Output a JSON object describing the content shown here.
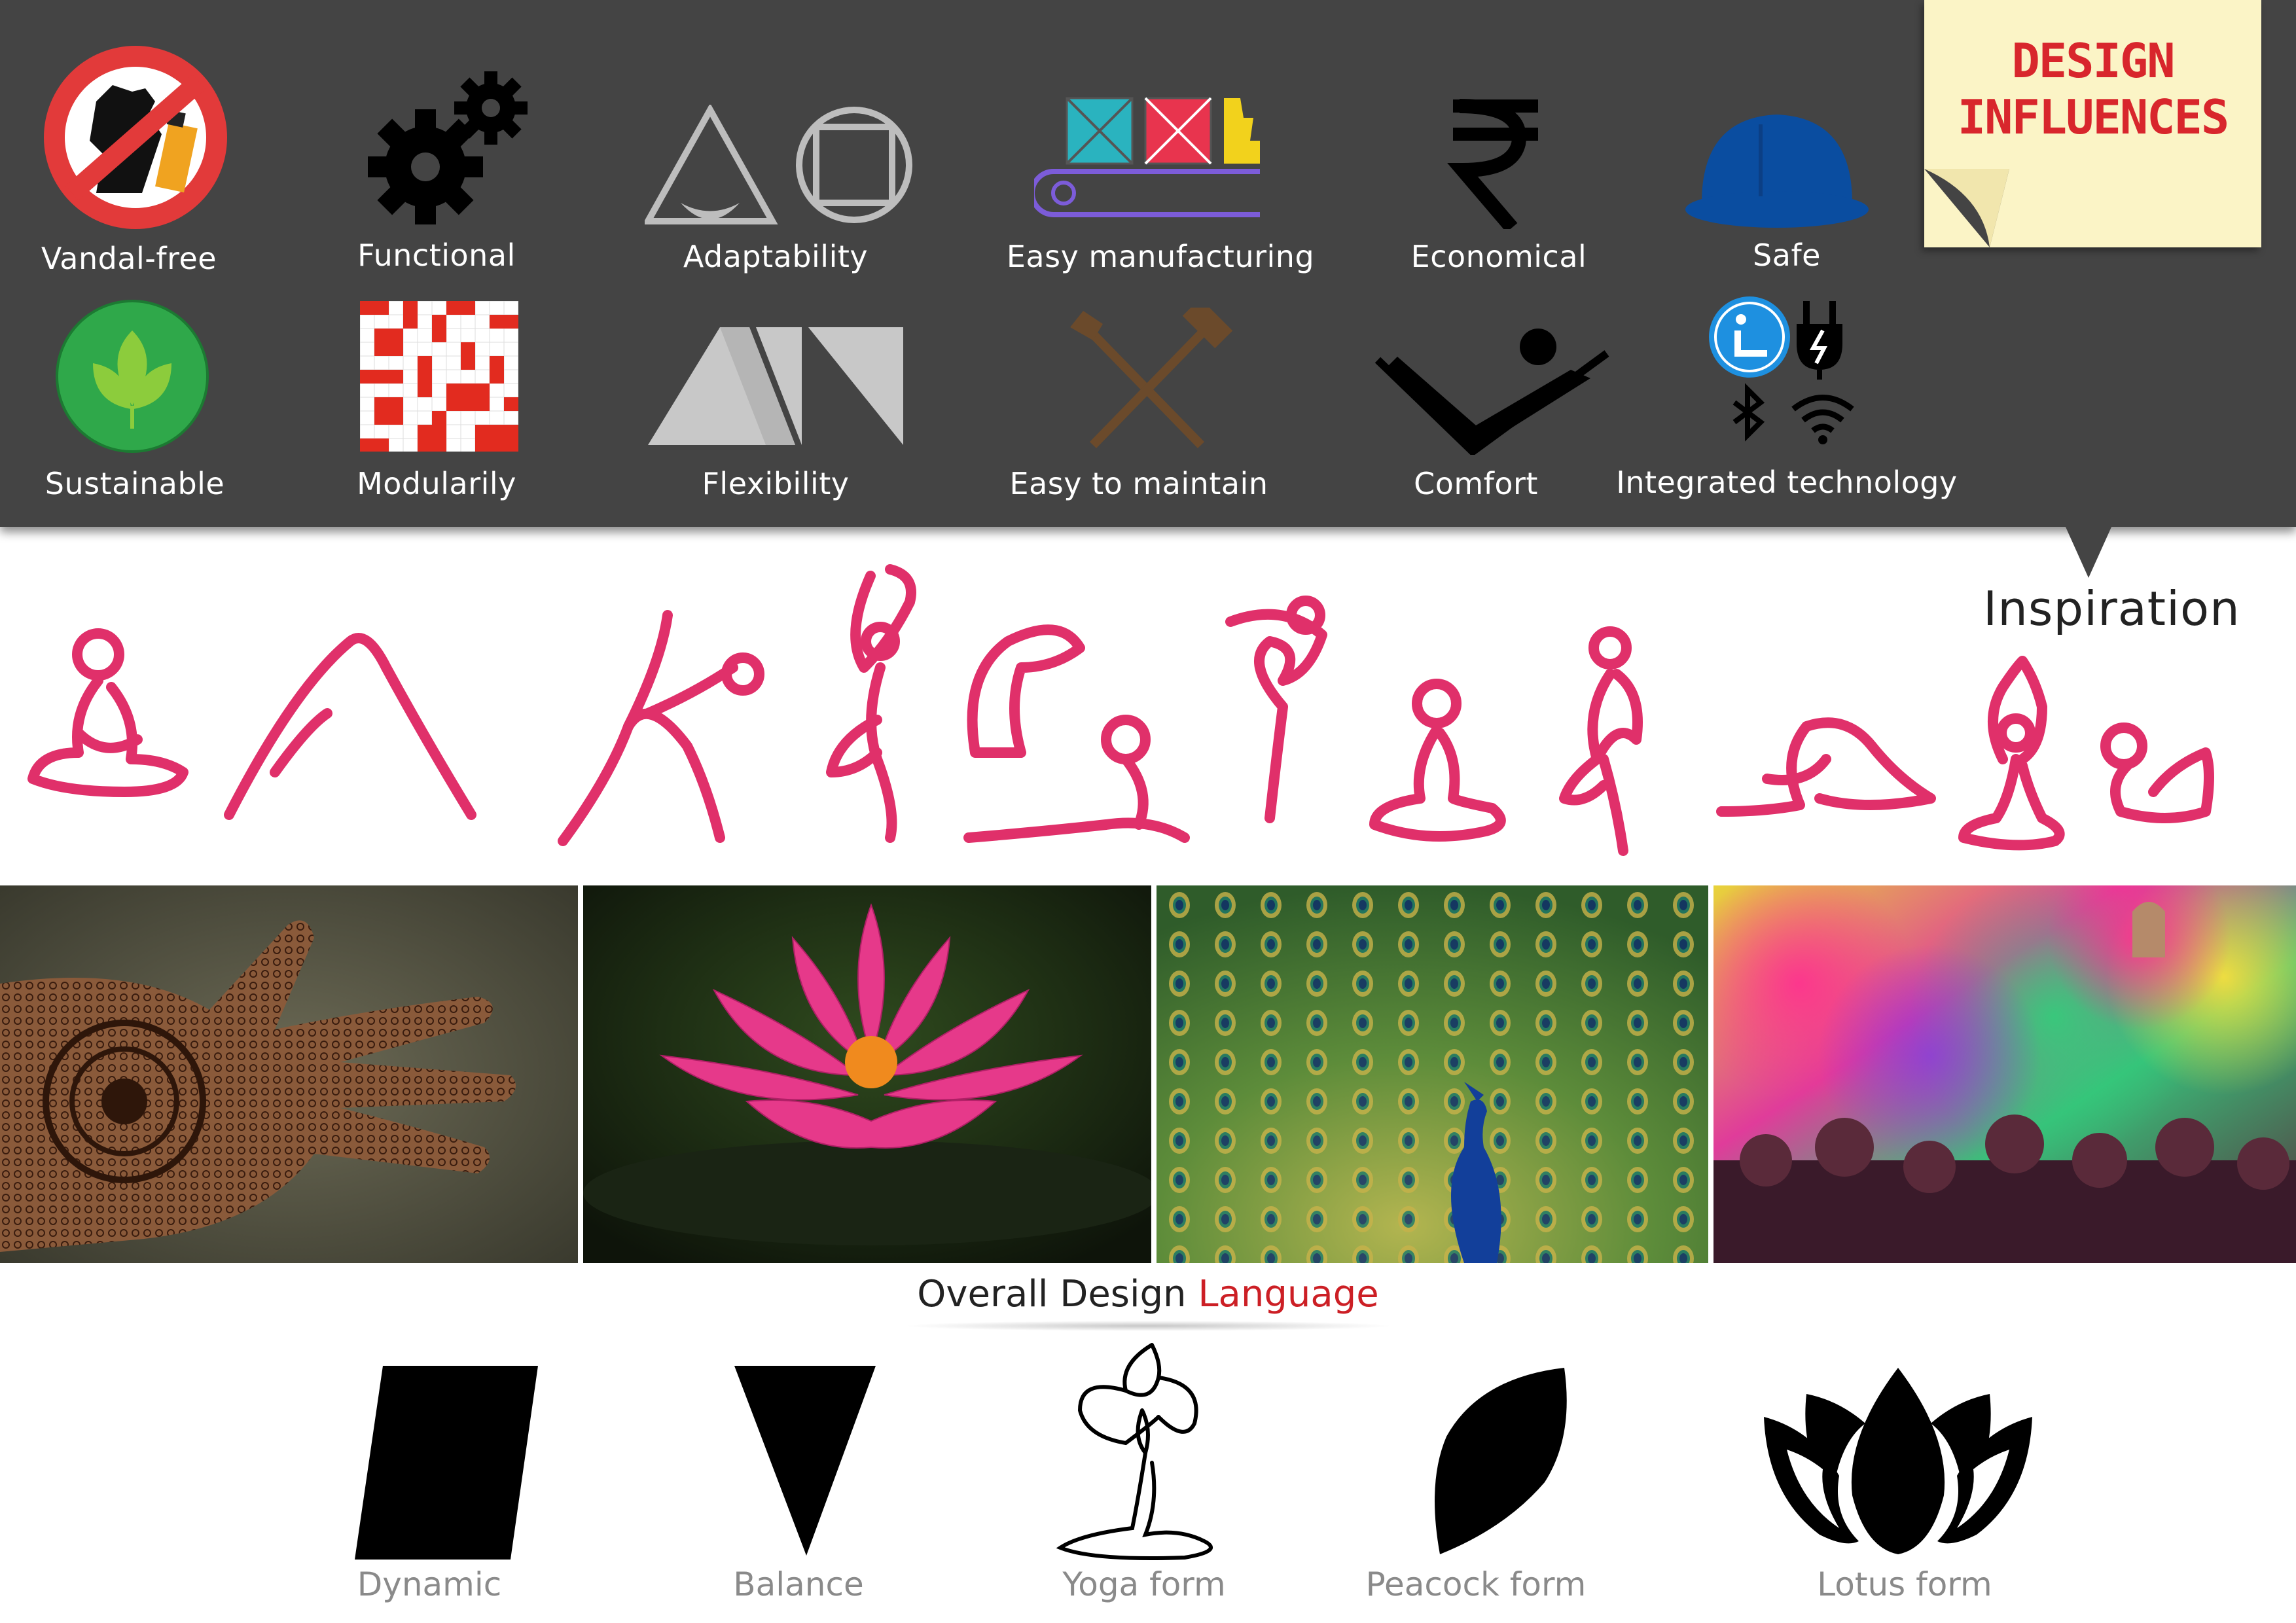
{
  "note": {
    "line1": "DESIGN",
    "line2": "INFLUENCES"
  },
  "influences": [
    {
      "label": "Vandal-free",
      "icon": "no-vandal-icon"
    },
    {
      "label": "Functional",
      "icon": "gears-icon"
    },
    {
      "label": "Adaptability",
      "icon": "adaptability-icon"
    },
    {
      "label": "Easy manufacturing",
      "icon": "conveyor-icon"
    },
    {
      "label": "Economical",
      "icon": "rupee-icon"
    },
    {
      "label": "Safe",
      "icon": "hard-hat-icon"
    },
    {
      "label": "Sustainable",
      "icon": "leaf-icon"
    },
    {
      "label": "Modularily",
      "icon": "grid-icon"
    },
    {
      "label": "Flexibility",
      "icon": "flexibility-icon"
    },
    {
      "label": "Easy to maintain",
      "icon": "shovel-hammer-icon"
    },
    {
      "label": "Comfort",
      "icon": "reclining-person-icon"
    },
    {
      "label": "Integrated technology",
      "icon": "tech-icons"
    }
  ],
  "inspiration": {
    "title": "Inspiration"
  },
  "photos": [
    "henna-hand-photo",
    "lotus-photo",
    "peacock-photo",
    "holi-photo"
  ],
  "language": {
    "title_part1": "Overall Design ",
    "title_part2": "Language",
    "forms": [
      {
        "label": "Dynamic",
        "icon": "parallelogram-icon"
      },
      {
        "label": "Balance",
        "icon": "inverted-triangle-icon"
      },
      {
        "label": "Yoga form",
        "icon": "yoga-line-icon"
      },
      {
        "label": "Peacock form",
        "icon": "peacock-leaf-icon"
      },
      {
        "label": "Lotus form",
        "icon": "lotus-icon"
      }
    ]
  },
  "colors": {
    "panel": "#444444",
    "accent_red": "#cc1f25",
    "yoga_pink": "#e0306a",
    "note": "#fbf4c6"
  }
}
